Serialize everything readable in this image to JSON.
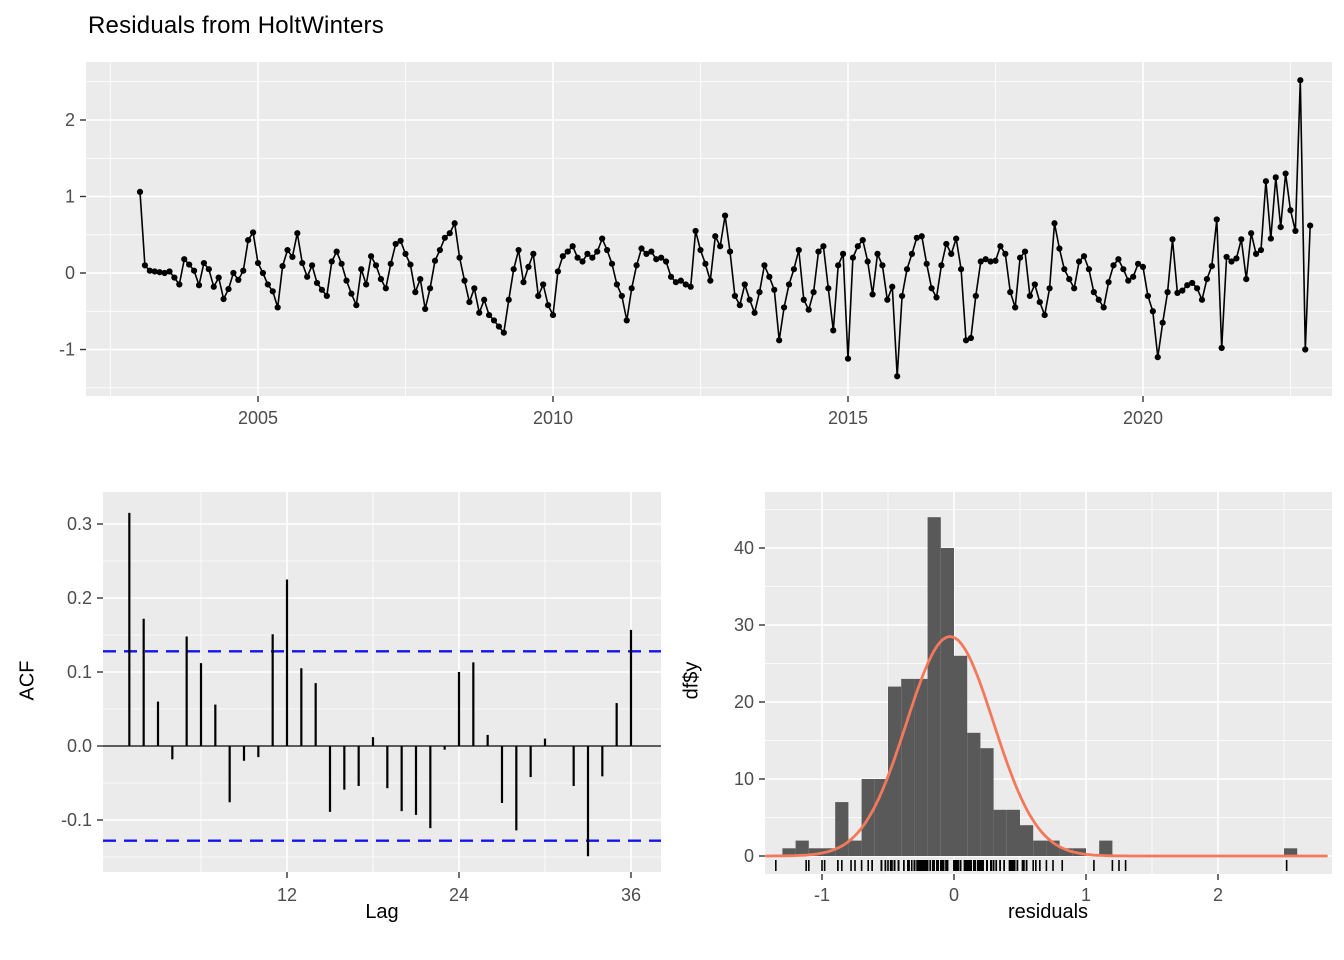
{
  "title": "Residuals from HoltWinters",
  "colors": {
    "panel_bg": "#EBEBEB",
    "grid": "#FFFFFF",
    "series": "#000000",
    "ci_line": "#1414EE",
    "hist_fill": "#595959",
    "normal_curve": "#F4795C",
    "tick_text": "#4D4D4D",
    "tick_mark": "#333333"
  },
  "chart_data": [
    {
      "type": "line",
      "name": "residuals-time-series",
      "title": "Residuals from HoltWinters",
      "x_start": 2003.0,
      "x_step_months": 1,
      "x_ticks": [
        2005,
        2010,
        2015,
        2020
      ],
      "x_tick_labels": [
        "2005",
        "2010",
        "2015",
        "2020"
      ],
      "y_ticks": [
        -1,
        0,
        1,
        2
      ],
      "y_tick_labels": [
        "-1",
        "0",
        "1",
        "2"
      ],
      "xlim": [
        2002.1,
        2023.2
      ],
      "ylim": [
        -1.6,
        2.75
      ],
      "grid": "on",
      "values": [
        1.06,
        0.1,
        0.03,
        0.02,
        0.01,
        0.0,
        0.02,
        -0.06,
        -0.15,
        0.18,
        0.11,
        0.03,
        -0.16,
        0.13,
        0.05,
        -0.18,
        -0.06,
        -0.34,
        -0.21,
        0.0,
        -0.09,
        0.03,
        0.43,
        0.53,
        0.13,
        0.0,
        -0.15,
        -0.24,
        -0.45,
        0.09,
        0.3,
        0.21,
        0.52,
        0.13,
        -0.05,
        0.1,
        -0.13,
        -0.22,
        -0.3,
        0.15,
        0.28,
        0.12,
        -0.1,
        -0.27,
        -0.42,
        0.05,
        -0.15,
        0.22,
        0.1,
        -0.08,
        -0.2,
        0.12,
        0.38,
        0.42,
        0.25,
        0.11,
        -0.25,
        -0.08,
        -0.47,
        -0.2,
        0.16,
        0.3,
        0.46,
        0.52,
        0.65,
        0.2,
        -0.1,
        -0.38,
        -0.2,
        -0.52,
        -0.35,
        -0.55,
        -0.62,
        -0.7,
        -0.78,
        -0.35,
        0.05,
        0.3,
        -0.12,
        0.08,
        0.25,
        -0.3,
        -0.15,
        -0.42,
        -0.55,
        0.02,
        0.22,
        0.28,
        0.35,
        0.2,
        0.15,
        0.25,
        0.2,
        0.28,
        0.45,
        0.3,
        0.12,
        -0.15,
        -0.3,
        -0.62,
        -0.2,
        0.1,
        0.32,
        0.25,
        0.28,
        0.18,
        0.2,
        0.15,
        -0.05,
        -0.12,
        -0.1,
        -0.15,
        -0.18,
        0.55,
        0.3,
        0.12,
        -0.1,
        0.48,
        0.35,
        0.75,
        0.28,
        -0.3,
        -0.42,
        -0.15,
        -0.35,
        -0.52,
        -0.25,
        0.1,
        -0.05,
        -0.22,
        -0.88,
        -0.45,
        -0.15,
        0.05,
        0.3,
        -0.35,
        -0.48,
        -0.25,
        0.28,
        0.35,
        -0.2,
        -0.75,
        0.1,
        0.25,
        -1.12,
        0.2,
        0.35,
        0.43,
        0.15,
        -0.28,
        0.25,
        0.1,
        -0.35,
        -0.18,
        -1.35,
        -0.3,
        0.05,
        0.25,
        0.46,
        0.48,
        0.12,
        -0.2,
        -0.32,
        0.1,
        0.38,
        0.25,
        0.45,
        0.05,
        -0.88,
        -0.85,
        -0.3,
        0.15,
        0.18,
        0.15,
        0.16,
        0.35,
        0.25,
        -0.25,
        -0.45,
        0.2,
        0.28,
        -0.3,
        -0.15,
        -0.38,
        -0.55,
        -0.2,
        0.65,
        0.32,
        0.05,
        -0.08,
        -0.2,
        0.15,
        0.22,
        0.05,
        -0.25,
        -0.35,
        -0.45,
        -0.12,
        0.1,
        0.18,
        0.05,
        -0.1,
        -0.05,
        0.12,
        0.08,
        -0.3,
        -0.5,
        -1.1,
        -0.65,
        -0.25,
        0.44,
        -0.26,
        -0.23,
        -0.16,
        -0.13,
        -0.2,
        -0.35,
        -0.08,
        0.09,
        0.7,
        -0.98,
        0.21,
        0.15,
        0.19,
        0.44,
        -0.08,
        0.52,
        0.25,
        0.3,
        1.2,
        0.45,
        1.25,
        0.6,
        1.3,
        0.82,
        0.55,
        2.52,
        -1.0,
        0.62
      ]
    },
    {
      "type": "bar",
      "name": "acf",
      "xlabel": "Lag",
      "ylabel": "ACF",
      "lag_start": 1,
      "values": [
        0.315,
        0.172,
        0.06,
        -0.018,
        0.148,
        0.112,
        0.056,
        -0.076,
        -0.02,
        -0.015,
        0.151,
        0.225,
        0.105,
        0.085,
        -0.089,
        -0.059,
        -0.054,
        0.012,
        -0.057,
        -0.088,
        -0.093,
        -0.111,
        -0.005,
        0.1,
        0.113,
        0.015,
        -0.077,
        -0.114,
        -0.042,
        0.01,
        0.0,
        -0.054,
        -0.149,
        -0.041,
        0.058,
        0.157
      ],
      "confidence_bound": 0.128,
      "x_ticks": [
        12,
        24,
        36
      ],
      "x_tick_labels": [
        "12",
        "24",
        "36"
      ],
      "y_ticks": [
        0.3,
        0.2,
        0.1,
        0.0,
        -0.1
      ],
      "y_tick_labels": [
        "0.3",
        "0.2",
        "0.1",
        "0.0",
        "-0.1"
      ],
      "ylim": [
        -0.175,
        0.335
      ],
      "xlim": [
        -0.5,
        38
      ]
    },
    {
      "type": "histogram",
      "name": "residuals-histogram",
      "xlabel": "residuals",
      "ylabel": "df$y",
      "bin_start": -1.3,
      "bin_width": 0.1,
      "counts": [
        1,
        2,
        1,
        1,
        7,
        2,
        10,
        10,
        22,
        23,
        23,
        44,
        40,
        26,
        16,
        14,
        6,
        6,
        4,
        2,
        2,
        1,
        1,
        0,
        2,
        0,
        0,
        0,
        0,
        0,
        0,
        0,
        0,
        0,
        0,
        0,
        0,
        0,
        1
      ],
      "x_ticks": [
        -1,
        0,
        1,
        2
      ],
      "x_tick_labels": [
        "-1",
        "0",
        "1",
        "2"
      ],
      "y_ticks": [
        0,
        10,
        20,
        30,
        40
      ],
      "y_tick_labels": [
        "0",
        "10",
        "20",
        "30",
        "40"
      ],
      "xlim": [
        -1.45,
        2.85
      ],
      "ylim": [
        0,
        47
      ],
      "normal_curve": {
        "mean": -0.03,
        "sd": 0.33,
        "peak": 28.5
      },
      "rug": "series-values"
    }
  ]
}
